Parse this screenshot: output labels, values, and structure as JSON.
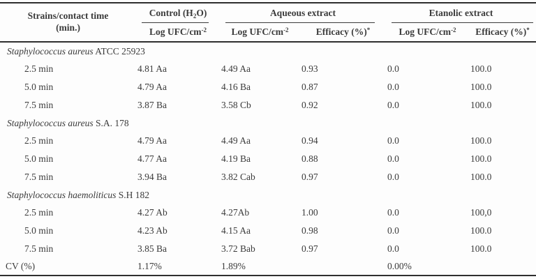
{
  "table": {
    "header": {
      "strains_line1": "Strains/contact time",
      "strains_line2": "(min.)",
      "control_pre": "Control (H",
      "control_sub": "2",
      "control_post": "O)",
      "aqueous_label": "Aqueous extract",
      "etanolic_label": "Etanolic extract",
      "log_ufc_pre": "Log UFC/cm",
      "log_ufc_sup": "-2",
      "efficacy_pre": "Efficacy (%)",
      "efficacy_sup": "*"
    },
    "groups": [
      {
        "strain_italic": "Staphylococcus aureus",
        "strain_roman": "ATCC 25923",
        "rows": [
          {
            "time": "2.5 min",
            "control_log": "4.81 Aa",
            "aq_log": "4.49 Aa",
            "aq_eff": "0.93",
            "et_log": "0.0",
            "et_eff": "100.0"
          },
          {
            "time": "5.0 min",
            "control_log": "4.79 Aa",
            "aq_log": "4.16 Ba",
            "aq_eff": "0.87",
            "et_log": "0.0",
            "et_eff": "100.0"
          },
          {
            "time": "7.5 min",
            "control_log": "3.87 Ba",
            "aq_log": "3.58 Cb",
            "aq_eff": "0.92",
            "et_log": "0.0",
            "et_eff": "100.0"
          }
        ]
      },
      {
        "strain_italic": "Staphylococcus aureus",
        "strain_roman": "S.A. 178",
        "rows": [
          {
            "time": "2.5 min",
            "control_log": "4.79 Aa",
            "aq_log": "4.49 Aa",
            "aq_eff": "0.94",
            "et_log": "0.0",
            "et_eff": "100.0"
          },
          {
            "time": "5.0 min",
            "control_log": "4.77 Aa",
            "aq_log": "4.19 Ba",
            "aq_eff": "0.88",
            "et_log": "0.0",
            "et_eff": "100.0"
          },
          {
            "time": "7.5 min",
            "control_log": "3.94 Ba",
            "aq_log": "3.82 Cab",
            "aq_eff": "0.97",
            "et_log": "0.0",
            "et_eff": "100.0"
          }
        ]
      },
      {
        "strain_italic": "Staphylococcus haemoliticus",
        "strain_roman": "S.H 182",
        "rows": [
          {
            "time": "2.5 min",
            "control_log": "4.27 Ab",
            "aq_log": "4.27Ab",
            "aq_eff": "1.00",
            "et_log": "0.0",
            "et_eff": "100,0"
          },
          {
            "time": "5.0 min",
            "control_log": "4.23 Ab",
            "aq_log": "4.15 Aa",
            "aq_eff": "0.98",
            "et_log": "0.0",
            "et_eff": "100.0"
          },
          {
            "time": "7.5 min",
            "control_log": "3.85 Ba",
            "aq_log": "3.72 Bab",
            "aq_eff": "0.97",
            "et_log": "0.0",
            "et_eff": "100.0"
          }
        ]
      }
    ],
    "footer": {
      "label": "CV (%)",
      "control": "1.17%",
      "aqueous": "1.89%",
      "etanolic": "0.00%"
    }
  },
  "colors": {
    "text": "#3b3b3b",
    "rule": "#2e2e2e",
    "background": "#fdfdfd"
  }
}
